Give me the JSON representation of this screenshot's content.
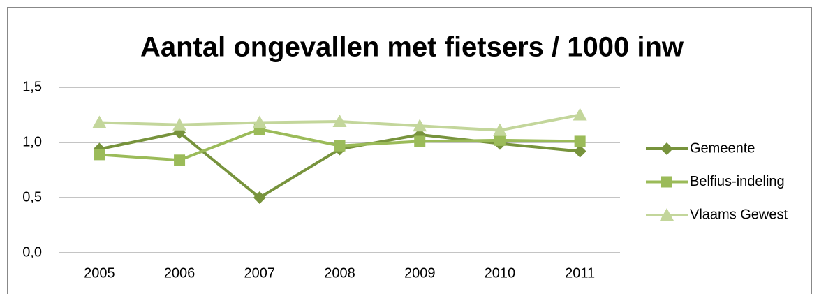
{
  "chart_data": {
    "type": "line",
    "title": "Aantal ongevallen met fietsers / 1000 inw",
    "categories": [
      "2005",
      "2006",
      "2007",
      "2008",
      "2009",
      "2010",
      "2011"
    ],
    "series": [
      {
        "name": "Gemeente",
        "color": "#77933c",
        "marker": "diamond",
        "values": [
          0.94,
          1.09,
          0.5,
          0.94,
          1.07,
          0.99,
          0.92
        ]
      },
      {
        "name": "Belfius-indeling",
        "color": "#9bbb59",
        "marker": "square",
        "values": [
          0.89,
          0.84,
          1.12,
          0.97,
          1.01,
          1.02,
          1.01
        ]
      },
      {
        "name": "Vlaams Gewest",
        "color": "#c3d69b",
        "marker": "triangle",
        "values": [
          1.18,
          1.16,
          1.18,
          1.19,
          1.15,
          1.11,
          1.25
        ]
      }
    ],
    "ylim": [
      0,
      1.5
    ],
    "yticks": [
      {
        "value": 0,
        "label": "0,0"
      },
      {
        "value": 0.5,
        "label": "0,5"
      },
      {
        "value": 1,
        "label": "1,0"
      },
      {
        "value": 1.5,
        "label": "1,5"
      }
    ],
    "grid": true,
    "legend": "right"
  }
}
